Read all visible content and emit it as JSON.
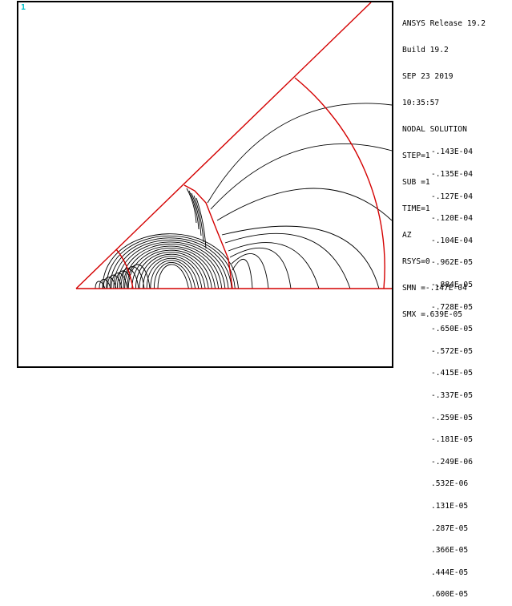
{
  "window_number": "1",
  "info": {
    "release": "ANSYS Release 19.2",
    "build": "Build 19.2",
    "date": "SEP 23 2019",
    "time": "10:35:57",
    "solution": "NODAL SOLUTION",
    "step": "STEP=1",
    "sub": "SUB =1",
    "time_value": "TIME=1",
    "item": "AZ",
    "rsys": "RSYS=0",
    "smn": "SMN =-.147E-04",
    "smx": "SMX =.639E-05"
  },
  "contour_levels": [
    "-.143E-04",
    "-.135E-04",
    "-.127E-04",
    "-.120E-04",
    "-.104E-04",
    "-.962E-05",
    "-.884E-05",
    "-.728E-05",
    "-.650E-05",
    "-.572E-05",
    "-.415E-05",
    "-.337E-05",
    "-.259E-05",
    "-.181E-05",
    "-.249E-06",
    ".532E-06",
    ".131E-05",
    ".287E-05",
    ".366E-05",
    ".444E-05",
    ".600E-05"
  ],
  "colors": {
    "boundary": "#d40000",
    "contour": "#000000",
    "window_number": "#00c0c8"
  }
}
